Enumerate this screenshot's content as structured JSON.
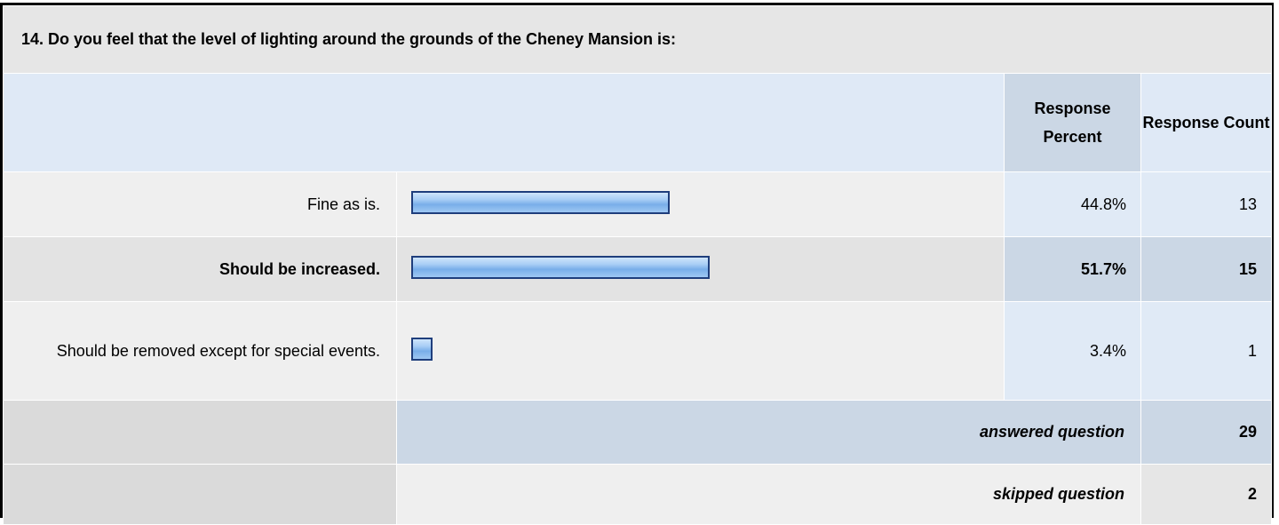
{
  "question": {
    "title": "14. Do you feel that the level of lighting around the grounds of the Cheney Mansion is:"
  },
  "headers": {
    "response_percent": "Response Percent",
    "response_count": "Response Count"
  },
  "rows": [
    {
      "label": "Fine as is.",
      "percent": "44.8%",
      "count": "13",
      "percent_value": 44.8
    },
    {
      "label": "Should be increased.",
      "percent": "51.7%",
      "count": "15",
      "percent_value": 51.7
    },
    {
      "label": "Should be removed except for special events.",
      "percent": "3.4%",
      "count": "1",
      "percent_value": 3.4
    }
  ],
  "footer": {
    "answered_label": "answered question",
    "answered_count": "29",
    "skipped_label": "skipped question",
    "skipped_count": "2"
  },
  "colors": {
    "bar_border": "#1f3e7c",
    "bar_fill": "#79aee9",
    "header_blue": "#dfe9f6",
    "accent_blue": "#cbd7e5"
  }
}
